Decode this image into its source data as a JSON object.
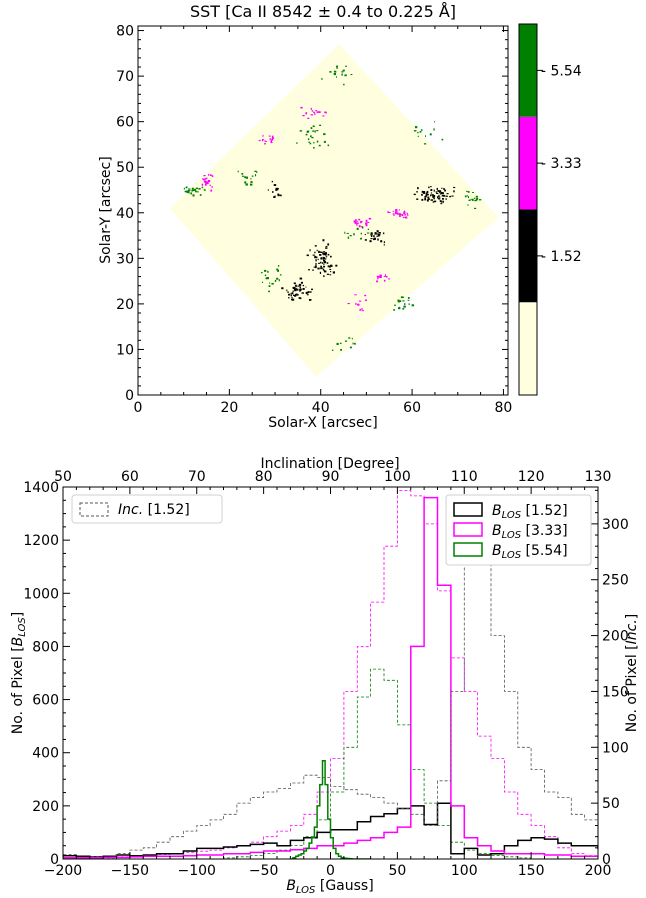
{
  "chart_data": [
    {
      "type": "heatmap",
      "title": "SST [Ca II 8542 ± 0.4 to 0.225 Å]",
      "xlabel": "Solar-X [arcsec]",
      "ylabel": "Solar-Y [arcsec]",
      "xlim": [
        0,
        81
      ],
      "ylim": [
        0,
        81
      ],
      "x_ticks": [
        "0",
        "20",
        "40",
        "60",
        "80"
      ],
      "y_ticks": [
        "0",
        "10",
        "20",
        "30",
        "40",
        "50",
        "60",
        "70",
        "80"
      ],
      "field_of_view": [
        [
          7,
          41
        ],
        [
          44,
          77
        ],
        [
          79,
          39
        ],
        [
          39,
          4
        ]
      ],
      "colorbar": {
        "bins": [
          {
            "color": "#ffffe0",
            "label": ""
          },
          {
            "color": "#000000",
            "label": "1.52"
          },
          {
            "color": "#ff00ff",
            "label": "3.33"
          },
          {
            "color": "#008000",
            "label": "5.54"
          }
        ]
      },
      "clusters": [
        {
          "class": "black",
          "color": "#000000",
          "center": [
            65,
            44
          ],
          "spread": [
            3.5,
            1.5
          ],
          "count": 70
        },
        {
          "class": "black",
          "color": "#000000",
          "center": [
            40,
            30
          ],
          "spread": [
            2,
            3
          ],
          "count": 70
        },
        {
          "class": "black",
          "color": "#000000",
          "center": [
            35,
            23
          ],
          "spread": [
            2.5,
            2
          ],
          "count": 50
        },
        {
          "class": "black",
          "color": "#000000",
          "center": [
            52,
            35
          ],
          "spread": [
            2,
            1.5
          ],
          "count": 25
        },
        {
          "class": "black",
          "color": "#000000",
          "center": [
            30,
            45
          ],
          "spread": [
            1.5,
            1.5
          ],
          "count": 15
        },
        {
          "class": "magenta",
          "color": "#ff00ff",
          "center": [
            57,
            40
          ],
          "spread": [
            2,
            1
          ],
          "count": 25
        },
        {
          "class": "magenta",
          "color": "#ff00ff",
          "center": [
            15,
            47
          ],
          "spread": [
            1,
            1.5
          ],
          "count": 20
        },
        {
          "class": "magenta",
          "color": "#ff00ff",
          "center": [
            28,
            56
          ],
          "spread": [
            1.5,
            1
          ],
          "count": 15
        },
        {
          "class": "magenta",
          "color": "#ff00ff",
          "center": [
            48,
            38
          ],
          "spread": [
            2,
            1
          ],
          "count": 18
        },
        {
          "class": "magenta",
          "color": "#ff00ff",
          "center": [
            38,
            62
          ],
          "spread": [
            3,
            1
          ],
          "count": 15
        },
        {
          "class": "magenta",
          "color": "#ff00ff",
          "center": [
            53,
            26
          ],
          "spread": [
            1.5,
            1
          ],
          "count": 12
        },
        {
          "class": "magenta",
          "color": "#ff00ff",
          "center": [
            48,
            20
          ],
          "spread": [
            2,
            1.5
          ],
          "count": 10
        },
        {
          "class": "green",
          "color": "#008000",
          "center": [
            12,
            45
          ],
          "spread": [
            2,
            1
          ],
          "count": 25
        },
        {
          "class": "green",
          "color": "#008000",
          "center": [
            73,
            43
          ],
          "spread": [
            1.5,
            1.5
          ],
          "count": 18
        },
        {
          "class": "green",
          "color": "#008000",
          "center": [
            38,
            57
          ],
          "spread": [
            3,
            2
          ],
          "count": 25
        },
        {
          "class": "green",
          "color": "#008000",
          "center": [
            24,
            48
          ],
          "spread": [
            2,
            1.5
          ],
          "count": 15
        },
        {
          "class": "green",
          "color": "#008000",
          "center": [
            29,
            26
          ],
          "spread": [
            2,
            2
          ],
          "count": 18
        },
        {
          "class": "green",
          "color": "#008000",
          "center": [
            58,
            20
          ],
          "spread": [
            2,
            2
          ],
          "count": 18
        },
        {
          "class": "green",
          "color": "#008000",
          "center": [
            45,
            71
          ],
          "spread": [
            4,
            2
          ],
          "count": 15
        },
        {
          "class": "green",
          "color": "#008000",
          "center": [
            48,
            36
          ],
          "spread": [
            2,
            1.5
          ],
          "count": 12
        },
        {
          "class": "green",
          "color": "#008000",
          "center": [
            45,
            11
          ],
          "spread": [
            2,
            1.5
          ],
          "count": 10
        },
        {
          "class": "green",
          "color": "#008000",
          "center": [
            63,
            58
          ],
          "spread": [
            3,
            2
          ],
          "count": 12
        }
      ]
    },
    {
      "type": "histogram",
      "xlabel": "B_LOS [Gauss]",
      "ylabel_left": "No. of Pixel [B_LOS]",
      "ylabel_right": "No. of Pixel [Inc.]",
      "top_xlabel": "Inclination [Degree]",
      "xlim": [
        -200,
        200
      ],
      "ylim_left": [
        0,
        1400
      ],
      "top_xlim": [
        50,
        130
      ],
      "ylim_right": [
        0,
        333
      ],
      "x_ticks": [
        "−200",
        "−150",
        "−100",
        "−50",
        "0",
        "50",
        "100",
        "150",
        "200"
      ],
      "y_ticks_left": [
        "0",
        "200",
        "400",
        "600",
        "800",
        "1000",
        "1200",
        "1400"
      ],
      "y_ticks_right": [
        "0",
        "50",
        "100",
        "150",
        "200",
        "250",
        "300"
      ],
      "top_x_ticks": [
        "50",
        "60",
        "70",
        "80",
        "90",
        "100",
        "110",
        "120",
        "130"
      ],
      "bin_width_gauss": 10,
      "inc_bin_width_degree": 2,
      "legend_left": {
        "name": "Inc.",
        "suffix": "[1.52]"
      },
      "legend_right": [
        {
          "name": "B",
          "sub": "LOS",
          "suffix": "[1.52]",
          "color": "#000000"
        },
        {
          "name": "B",
          "sub": "LOS",
          "suffix": "[3.33]",
          "color": "#ff00ff"
        },
        {
          "name": "B",
          "sub": "LOS",
          "suffix": "[5.54]",
          "color": "#008000"
        }
      ],
      "series": [
        {
          "name": "B_LOS [1.52]",
          "color": "#000000",
          "style": "solid",
          "x_start": -200,
          "values": [
            12,
            10,
            8,
            10,
            15,
            12,
            15,
            20,
            20,
            30,
            40,
            40,
            45,
            50,
            55,
            60,
            50,
            70,
            80,
            100,
            110,
            110,
            140,
            160,
            170,
            190,
            200,
            130,
            210,
            20,
            40,
            15,
            20,
            50,
            70,
            80,
            75,
            60,
            50,
            50,
            40,
            50,
            60,
            50,
            40,
            45,
            40,
            40,
            45,
            45,
            50,
            40,
            30,
            20,
            15,
            10,
            5,
            5,
            0,
            0
          ]
        },
        {
          "name": "B_LOS [3.33]",
          "color": "#ff00ff",
          "style": "solid",
          "x_start": -200,
          "values": [
            5,
            5,
            5,
            6,
            6,
            8,
            10,
            10,
            10,
            12,
            15,
            15,
            20,
            20,
            25,
            30,
            30,
            35,
            40,
            50,
            50,
            60,
            70,
            80,
            100,
            120,
            800,
            1360,
            1030,
            200,
            80,
            50,
            30,
            20,
            20,
            20,
            15,
            15,
            10,
            10,
            8,
            8,
            5,
            5,
            5,
            3,
            2,
            2
          ]
        },
        {
          "name": "B_LOS [5.54]",
          "color": "#008000",
          "style": "solid",
          "x_start": -30,
          "bin_width": 2,
          "values": [
            0,
            5,
            10,
            15,
            20,
            30,
            40,
            60,
            80,
            120,
            200,
            280,
            370,
            280,
            150,
            80,
            40,
            20,
            10,
            5,
            3,
            2,
            1,
            0,
            0,
            0,
            0,
            0,
            0,
            0
          ]
        },
        {
          "name": "Inc. [1.52]",
          "color": "#000000",
          "style": "dashed",
          "axis": "top-right",
          "x_start": 50,
          "values": [
            4,
            3,
            2,
            3,
            5,
            8,
            10,
            15,
            20,
            25,
            30,
            35,
            40,
            50,
            55,
            60,
            63,
            68,
            75,
            73,
            65,
            62,
            58,
            55,
            50,
            45,
            40,
            30,
            70,
            150,
            310,
            280,
            200,
            150,
            100,
            80,
            60,
            55,
            40,
            35,
            30,
            25,
            20,
            15,
            13,
            10,
            8,
            5,
            3,
            2
          ],
          "values_note": "inclination histogram in degree bins (each 2°), right axis counts"
        }
      ],
      "secondary_series": [
        {
          "name": "Inc. [3.33]",
          "color": "#ff00ff",
          "style": "dashed",
          "axis": "top-right",
          "x_start": 50,
          "values": [
            1,
            1,
            1,
            1,
            2,
            3,
            3,
            4,
            5,
            6,
            7,
            8,
            10,
            12,
            15,
            20,
            25,
            30,
            40,
            60,
            90,
            150,
            190,
            230,
            280,
            330,
            325,
            300,
            240,
            180,
            150,
            110,
            90,
            60,
            40,
            30,
            20,
            10,
            5,
            3,
            2,
            1,
            1,
            1,
            1,
            0,
            0,
            0,
            0,
            0
          ]
        },
        {
          "name": "Inc. [5.54]",
          "color": "#008000",
          "style": "dashed",
          "axis": "top-right",
          "x_start": 50,
          "values": [
            0,
            0,
            0,
            0,
            0,
            0,
            0,
            0,
            0,
            0,
            0,
            0,
            1,
            2,
            3,
            5,
            8,
            12,
            20,
            35,
            60,
            100,
            145,
            170,
            160,
            120,
            80,
            50,
            30,
            15,
            8,
            5,
            3,
            2,
            1,
            0,
            0,
            0,
            0,
            0,
            0,
            0,
            0,
            0,
            0,
            0,
            0,
            0,
            0,
            0
          ]
        }
      ]
    }
  ]
}
